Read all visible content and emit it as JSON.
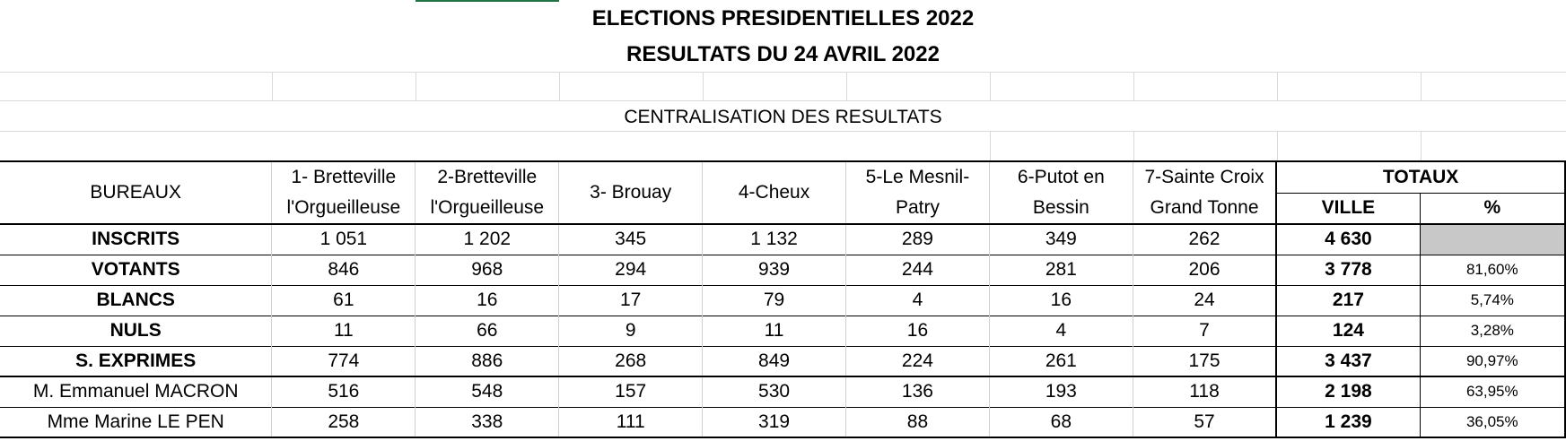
{
  "header": {
    "title_line1": "ELECTIONS PRESIDENTIELLES 2022",
    "title_line2": "RESULTATS DU 24 AVRIL 2022",
    "subtitle": "CENTRALISATION DES RESULTATS"
  },
  "table": {
    "corner_label": "BUREAUX",
    "bureaus": [
      {
        "line1": "1- Bretteville",
        "line2": "l'Orgueilleuse"
      },
      {
        "line1": "2-Bretteville",
        "line2": "l'Orgueilleuse"
      },
      {
        "line1": "3- Brouay",
        "line2": ""
      },
      {
        "line1": "4-Cheux",
        "line2": ""
      },
      {
        "line1": "5-Le Mesnil-",
        "line2": "Patry"
      },
      {
        "line1": "6-Putot en",
        "line2": "Bessin"
      },
      {
        "line1": "7-Sainte Croix",
        "line2": "Grand Tonne"
      }
    ],
    "totals_header": "TOTAUX",
    "ville_header": "VILLE",
    "percent_header": "%",
    "rows": [
      {
        "label": "INSCRITS",
        "values": [
          "1 051",
          "1 202",
          "345",
          "1 132",
          "289",
          "349",
          "262"
        ],
        "ville": "4 630",
        "pct": ""
      },
      {
        "label": "VOTANTS",
        "values": [
          "846",
          "968",
          "294",
          "939",
          "244",
          "281",
          "206"
        ],
        "ville": "3 778",
        "pct": "81,60%"
      },
      {
        "label": "BLANCS",
        "values": [
          "61",
          "16",
          "17",
          "79",
          "4",
          "16",
          "24"
        ],
        "ville": "217",
        "pct": "5,74%"
      },
      {
        "label": "NULS",
        "values": [
          "11",
          "66",
          "9",
          "11",
          "16",
          "4",
          "7"
        ],
        "ville": "124",
        "pct": "3,28%"
      },
      {
        "label": "S. EXPRIMES",
        "values": [
          "774",
          "886",
          "268",
          "849",
          "224",
          "261",
          "175"
        ],
        "ville": "3 437",
        "pct": "90,97%"
      },
      {
        "label": "M. Emmanuel MACRON",
        "values": [
          "516",
          "548",
          "157",
          "530",
          "136",
          "193",
          "118"
        ],
        "ville": "2 198",
        "pct": "63,95%"
      },
      {
        "label": "Mme Marine LE PEN",
        "values": [
          "258",
          "338",
          "111",
          "319",
          "88",
          "68",
          "57"
        ],
        "ville": "1 239",
        "pct": "36,05%"
      }
    ]
  }
}
